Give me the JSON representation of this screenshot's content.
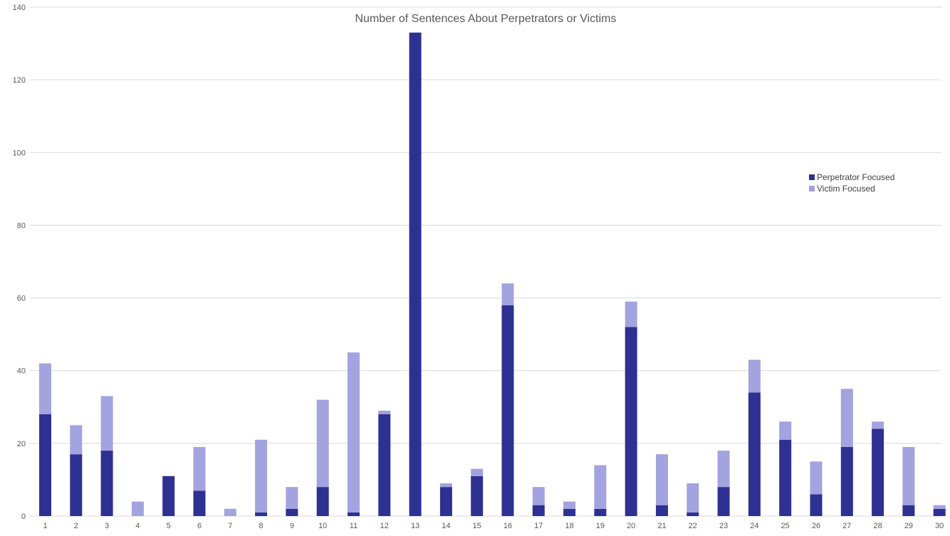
{
  "chart_data": {
    "type": "bar",
    "stacked": true,
    "title": "Number of Sentences About Perpetrators or Victims",
    "xlabel": "",
    "ylabel": "",
    "ylim": [
      0,
      140
    ],
    "yticks": [
      0,
      20,
      40,
      60,
      80,
      100,
      120,
      140
    ],
    "grid": true,
    "legend": "right",
    "categories": [
      "1",
      "2",
      "3",
      "4",
      "5",
      "6",
      "7",
      "8",
      "9",
      "10",
      "11",
      "12",
      "13",
      "14",
      "15",
      "16",
      "17",
      "18",
      "19",
      "20",
      "21",
      "22",
      "23",
      "24",
      "25",
      "26",
      "27",
      "28",
      "29",
      "30"
    ],
    "series": [
      {
        "name": "Perpetrator Focused",
        "color": "#2e3192",
        "values": [
          28,
          17,
          18,
          0,
          11,
          7,
          0,
          1,
          2,
          8,
          1,
          28,
          133,
          8,
          11,
          58,
          3,
          2,
          2,
          52,
          3,
          1,
          8,
          34,
          21,
          6,
          19,
          24,
          3,
          2
        ]
      },
      {
        "name": "Victim Focused",
        "color": "#a3a3df",
        "values": [
          14,
          8,
          15,
          4,
          0,
          12,
          2,
          20,
          6,
          24,
          44,
          1,
          0,
          1,
          2,
          6,
          5,
          2,
          12,
          7,
          14,
          8,
          10,
          9,
          5,
          9,
          16,
          2,
          16,
          1
        ]
      }
    ]
  }
}
